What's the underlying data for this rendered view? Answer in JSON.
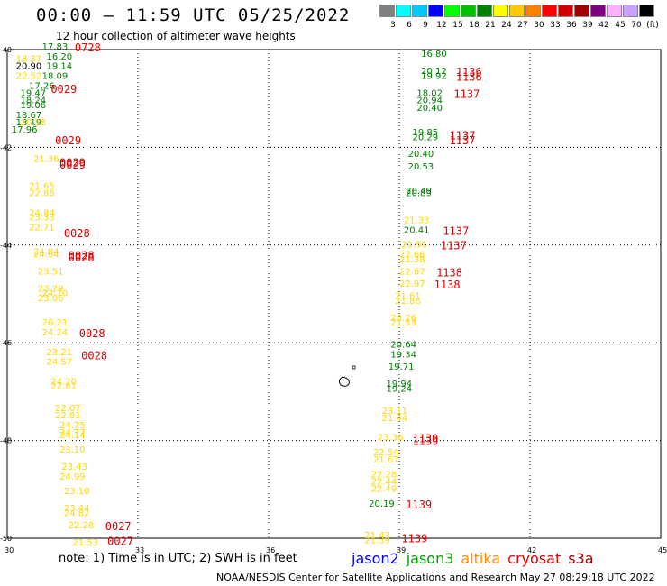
{
  "header": {
    "title": "00:00 – 11:59 UTC 05/25/2022",
    "subtitle": "12 hour collection of altimeter wave heights"
  },
  "colorbar": {
    "colors": [
      "#808080",
      "#00ffff",
      "#00c8ff",
      "#0000ff",
      "#00ff00",
      "#00c000",
      "#008000",
      "#ffff00",
      "#ffc800",
      "#ff8000",
      "#ff0000",
      "#d00000",
      "#a00000",
      "#800080",
      "#ffb0ff",
      "#c8a0ff",
      "#000000"
    ],
    "labels": [
      "3",
      "6",
      "9",
      "12",
      "15",
      "18",
      "21",
      "24",
      "27",
      "30",
      "33",
      "36",
      "39",
      "42",
      "45",
      "70",
      "(ft)"
    ]
  },
  "map": {
    "lon_ticks": [
      30,
      33,
      36,
      39,
      42,
      45
    ],
    "lat_ticks": [
      -40,
      -42,
      -44,
      -46,
      -48,
      -50
    ],
    "lon_range": [
      30,
      45
    ],
    "lat_range": [
      -50,
      -40
    ],
    "observations": [
      {
        "lon": 30.8,
        "lat": -40.0,
        "swh": "17.83",
        "color": "#008000"
      },
      {
        "lon": 30.2,
        "lat": -40.25,
        "swh": "18.37",
        "color": "#ffd700"
      },
      {
        "lon": 30.9,
        "lat": -40.2,
        "swh": "16.20",
        "color": "#008000"
      },
      {
        "lon": 30.2,
        "lat": -40.4,
        "swh": "20.90",
        "color": "#000000"
      },
      {
        "lon": 30.9,
        "lat": -40.4,
        "swh": "19.14",
        "color": "#008000"
      },
      {
        "lon": 30.2,
        "lat": -40.6,
        "swh": "22.52",
        "color": "#ffd700"
      },
      {
        "lon": 30.8,
        "lat": -40.6,
        "swh": "18.09",
        "color": "#008000"
      },
      {
        "lon": 30.5,
        "lat": -40.8,
        "swh": "17.26",
        "color": "#008000"
      },
      {
        "lon": 30.3,
        "lat": -40.95,
        "swh": "19.47",
        "color": "#008000"
      },
      {
        "lon": 30.3,
        "lat": -41.1,
        "swh": "18.24",
        "color": "#008000"
      },
      {
        "lon": 30.3,
        "lat": -41.2,
        "swh": "19.06",
        "color": "#008000"
      },
      {
        "lon": 30.2,
        "lat": -41.4,
        "swh": "18.67",
        "color": "#008000"
      },
      {
        "lon": 30.2,
        "lat": -41.55,
        "swh": "18.19",
        "color": "#008000"
      },
      {
        "lon": 30.3,
        "lat": -41.55,
        "swh": "20.28",
        "color": "#ffd700"
      },
      {
        "lon": 30.1,
        "lat": -41.7,
        "swh": "17.96",
        "color": "#008000"
      },
      {
        "lon": 30.6,
        "lat": -42.3,
        "swh": "21.36",
        "color": "#ffd700"
      },
      {
        "lon": 30.5,
        "lat": -42.85,
        "swh": "21.65",
        "color": "#ffd700"
      },
      {
        "lon": 30.5,
        "lat": -43.0,
        "swh": "22.86",
        "color": "#ffd700"
      },
      {
        "lon": 30.5,
        "lat": -43.4,
        "swh": "24.84",
        "color": "#ffd700"
      },
      {
        "lon": 30.5,
        "lat": -43.5,
        "swh": "23.33",
        "color": "#ffd700"
      },
      {
        "lon": 30.5,
        "lat": -43.7,
        "swh": "22.71",
        "color": "#ffd700"
      },
      {
        "lon": 30.6,
        "lat": -44.2,
        "swh": "24.84",
        "color": "#ffd700"
      },
      {
        "lon": 30.6,
        "lat": -44.25,
        "swh": "24.04",
        "color": "#ffd700"
      },
      {
        "lon": 30.7,
        "lat": -44.6,
        "swh": "23.51",
        "color": "#ffd700"
      },
      {
        "lon": 30.7,
        "lat": -44.95,
        "swh": "23.29",
        "color": "#ffd700"
      },
      {
        "lon": 30.8,
        "lat": -45.05,
        "swh": "24.70",
        "color": "#ffd700"
      },
      {
        "lon": 30.7,
        "lat": -45.15,
        "swh": "23.06",
        "color": "#ffd700"
      },
      {
        "lon": 30.8,
        "lat": -45.65,
        "swh": "26.21",
        "color": "#ffd700"
      },
      {
        "lon": 30.8,
        "lat": -45.85,
        "swh": "24.24",
        "color": "#ffd700"
      },
      {
        "lon": 30.9,
        "lat": -46.25,
        "swh": "23.21",
        "color": "#ffd700"
      },
      {
        "lon": 30.9,
        "lat": -46.45,
        "swh": "24.57",
        "color": "#ffd700"
      },
      {
        "lon": 31.0,
        "lat": -46.85,
        "swh": "24.20",
        "color": "#ffd700"
      },
      {
        "lon": 31.0,
        "lat": -46.95,
        "swh": "22.81",
        "color": "#ffd700"
      },
      {
        "lon": 31.1,
        "lat": -47.4,
        "swh": "22.07",
        "color": "#ffd700"
      },
      {
        "lon": 31.1,
        "lat": -47.55,
        "swh": "22.81",
        "color": "#ffd700"
      },
      {
        "lon": 31.2,
        "lat": -47.75,
        "swh": "24.75",
        "color": "#ffd700"
      },
      {
        "lon": 31.2,
        "lat": -47.9,
        "swh": "24.77",
        "color": "#ffd700"
      },
      {
        "lon": 31.2,
        "lat": -47.95,
        "swh": "24.14",
        "color": "#ffd700"
      },
      {
        "lon": 31.2,
        "lat": -48.25,
        "swh": "23.10",
        "color": "#ffd700"
      },
      {
        "lon": 31.25,
        "lat": -48.6,
        "swh": "23.43",
        "color": "#ffd700"
      },
      {
        "lon": 31.2,
        "lat": -48.8,
        "swh": "24.99",
        "color": "#ffd700"
      },
      {
        "lon": 31.3,
        "lat": -49.1,
        "swh": "23.10",
        "color": "#ffd700"
      },
      {
        "lon": 31.3,
        "lat": -49.45,
        "swh": "23.44",
        "color": "#ffd700"
      },
      {
        "lon": 31.3,
        "lat": -49.55,
        "swh": "24.82",
        "color": "#ffd700"
      },
      {
        "lon": 31.4,
        "lat": -49.8,
        "swh": "22.28",
        "color": "#ffd700"
      },
      {
        "lon": 31.5,
        "lat": -50.15,
        "swh": "21.53",
        "color": "#ffd700"
      },
      {
        "lon": 39.5,
        "lat": -40.15,
        "swh": "16.80",
        "color": "#008000"
      },
      {
        "lon": 39.5,
        "lat": -40.5,
        "swh": "20.12",
        "color": "#008000"
      },
      {
        "lon": 39.5,
        "lat": -40.6,
        "swh": "19.92",
        "color": "#008000"
      },
      {
        "lon": 39.4,
        "lat": -40.95,
        "swh": "18.02",
        "color": "#008000"
      },
      {
        "lon": 39.4,
        "lat": -41.1,
        "swh": "20.94",
        "color": "#008000"
      },
      {
        "lon": 39.4,
        "lat": -41.25,
        "swh": "20.40",
        "color": "#008000"
      },
      {
        "lon": 39.3,
        "lat": -41.75,
        "swh": "19.85",
        "color": "#008000"
      },
      {
        "lon": 39.3,
        "lat": -41.85,
        "swh": "20.29",
        "color": "#008000"
      },
      {
        "lon": 39.2,
        "lat": -42.2,
        "swh": "20.40",
        "color": "#008000"
      },
      {
        "lon": 39.2,
        "lat": -42.45,
        "swh": "20.53",
        "color": "#008000"
      },
      {
        "lon": 39.15,
        "lat": -42.95,
        "swh": "20.49",
        "color": "#008000"
      },
      {
        "lon": 39.15,
        "lat": -43.0,
        "swh": "20.89",
        "color": "#008000"
      },
      {
        "lon": 39.1,
        "lat": -43.55,
        "swh": "21.33",
        "color": "#ffd700"
      },
      {
        "lon": 39.1,
        "lat": -43.75,
        "swh": "20.41",
        "color": "#008000"
      },
      {
        "lon": 39.05,
        "lat": -44.05,
        "swh": "21.51",
        "color": "#ffd700"
      },
      {
        "lon": 39.0,
        "lat": -44.25,
        "swh": "22.66",
        "color": "#ffd700"
      },
      {
        "lon": 39.0,
        "lat": -44.35,
        "swh": "21.38",
        "color": "#ffd700"
      },
      {
        "lon": 39.0,
        "lat": -44.6,
        "swh": "22.67",
        "color": "#ffd700"
      },
      {
        "lon": 39.0,
        "lat": -44.85,
        "swh": "22.97",
        "color": "#ffd700"
      },
      {
        "lon": 38.9,
        "lat": -45.1,
        "swh": "21.61",
        "color": "#ffd700"
      },
      {
        "lon": 38.9,
        "lat": -45.2,
        "swh": "21.86",
        "color": "#ffd700"
      },
      {
        "lon": 38.8,
        "lat": -45.55,
        "swh": "23.26",
        "color": "#ffd700"
      },
      {
        "lon": 38.8,
        "lat": -45.65,
        "swh": "21.53",
        "color": "#ffd700"
      },
      {
        "lon": 38.8,
        "lat": -46.1,
        "swh": "20.64",
        "color": "#008000"
      },
      {
        "lon": 38.8,
        "lat": -46.3,
        "swh": "19.34",
        "color": "#008000"
      },
      {
        "lon": 38.75,
        "lat": -46.55,
        "swh": "19.71",
        "color": "#008000"
      },
      {
        "lon": 38.7,
        "lat": -46.9,
        "swh": "19.94",
        "color": "#008000"
      },
      {
        "lon": 38.7,
        "lat": -47.0,
        "swh": "19.24",
        "color": "#008000"
      },
      {
        "lon": 38.6,
        "lat": -47.45,
        "swh": "23.11",
        "color": "#ffd700"
      },
      {
        "lon": 38.6,
        "lat": -47.6,
        "swh": "21.44",
        "color": "#ffd700"
      },
      {
        "lon": 38.5,
        "lat": -48.0,
        "swh": "23.36",
        "color": "#ffd700"
      },
      {
        "lon": 38.4,
        "lat": -48.3,
        "swh": "22.54",
        "color": "#ffd700"
      },
      {
        "lon": 38.4,
        "lat": -48.45,
        "swh": "21.67",
        "color": "#ffd700"
      },
      {
        "lon": 38.35,
        "lat": -48.75,
        "swh": "22.28",
        "color": "#ffd700"
      },
      {
        "lon": 38.35,
        "lat": -48.9,
        "swh": "22.44",
        "color": "#ffd700"
      },
      {
        "lon": 38.35,
        "lat": -49.05,
        "swh": "22.49",
        "color": "#ffd700"
      },
      {
        "lon": 38.3,
        "lat": -49.35,
        "swh": "20.19",
        "color": "#008000"
      },
      {
        "lon": 38.2,
        "lat": -50.0,
        "swh": "21.43",
        "color": "#ffd700"
      },
      {
        "lon": 38.2,
        "lat": -50.1,
        "swh": "21.39",
        "color": "#ffd700"
      }
    ],
    "times": [
      {
        "lon": 31.55,
        "lat": -40.0,
        "text": "0728",
        "color": "#a00000"
      },
      {
        "lon": 31.0,
        "lat": -40.85,
        "text": "0029",
        "color": "#e00000"
      },
      {
        "lon": 31.1,
        "lat": -41.9,
        "text": "0029",
        "color": "#e00000"
      },
      {
        "lon": 31.2,
        "lat": -42.35,
        "text": "0029",
        "color": "#e00000"
      },
      {
        "lon": 31.2,
        "lat": -42.4,
        "text": "0029",
        "color": "#e00000"
      },
      {
        "lon": 31.3,
        "lat": -43.8,
        "text": "0028",
        "color": "#e00000"
      },
      {
        "lon": 31.4,
        "lat": -44.25,
        "text": "0028",
        "color": "#e00000"
      },
      {
        "lon": 31.4,
        "lat": -44.3,
        "text": "0028",
        "color": "#e00000"
      },
      {
        "lon": 31.65,
        "lat": -45.85,
        "text": "0028",
        "color": "#e00000"
      },
      {
        "lon": 31.7,
        "lat": -46.3,
        "text": "0028",
        "color": "#e00000"
      },
      {
        "lon": 32.25,
        "lat": -49.8,
        "text": "0027",
        "color": "#e00000"
      },
      {
        "lon": 32.3,
        "lat": -50.1,
        "text": "0027",
        "color": "#e00000"
      },
      {
        "lon": 40.3,
        "lat": -40.5,
        "text": "1136",
        "color": "#e00000"
      },
      {
        "lon": 40.3,
        "lat": -40.6,
        "text": "1136",
        "color": "#e00000"
      },
      {
        "lon": 40.25,
        "lat": -40.95,
        "text": "1137",
        "color": "#e00000"
      },
      {
        "lon": 40.15,
        "lat": -41.8,
        "text": "1137",
        "color": "#e00000"
      },
      {
        "lon": 40.15,
        "lat": -41.9,
        "text": "1137",
        "color": "#e00000"
      },
      {
        "lon": 40.0,
        "lat": -43.75,
        "text": "1137",
        "color": "#e00000"
      },
      {
        "lon": 39.95,
        "lat": -44.05,
        "text": "1137",
        "color": "#e00000"
      },
      {
        "lon": 39.85,
        "lat": -44.6,
        "text": "1138",
        "color": "#e00000"
      },
      {
        "lon": 39.8,
        "lat": -44.85,
        "text": "1138",
        "color": "#e00000"
      },
      {
        "lon": 39.3,
        "lat": -48.0,
        "text": "1139",
        "color": "#e00000"
      },
      {
        "lon": 39.3,
        "lat": -48.05,
        "text": "1139",
        "color": "#e00000"
      },
      {
        "lon": 39.15,
        "lat": -49.35,
        "text": "1139",
        "color": "#e00000"
      },
      {
        "lon": 39.05,
        "lat": -50.05,
        "text": "1139",
        "color": "#e00000"
      }
    ]
  },
  "note": "note:  1) Time is in UTC;  2) SWH is in feet",
  "legend": [
    {
      "name": "jason2",
      "color": "#0000ff"
    },
    {
      "name": "jason3",
      "color": "#00a000"
    },
    {
      "name": "altika",
      "color": "#ff8c00"
    },
    {
      "name": "cryosat",
      "color": "#e00000"
    },
    {
      "name": "s3a",
      "color": "#a00000"
    }
  ],
  "credit": "NOAA/NESDIS Center for Satellite Applications and Research     May 27 08:29:18 UTC 2022"
}
